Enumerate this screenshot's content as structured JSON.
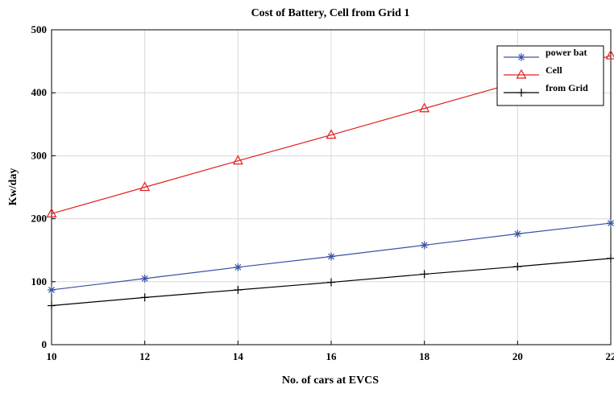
{
  "chart_data": {
    "type": "line",
    "title": "Cost of Battery, Cell from Grid 1",
    "xlabel": "No. of cars at EVCS",
    "ylabel": "Kw/day",
    "x": [
      10,
      12,
      14,
      16,
      18,
      20,
      22
    ],
    "xlim": [
      10,
      22
    ],
    "ylim": [
      0,
      500
    ],
    "xticks": [
      "10",
      "12",
      "14",
      "16",
      "18",
      "20",
      "22"
    ],
    "yticks": [
      "0",
      "100",
      "200",
      "300",
      "400",
      "500"
    ],
    "grid": true,
    "legend_position": "top-right",
    "series": [
      {
        "name": "power bat",
        "color": "#3a50a6",
        "marker": "asterisk",
        "values": [
          87,
          105,
          123,
          140,
          158,
          176,
          193
        ]
      },
      {
        "name": "Cell",
        "color": "#e02020",
        "marker": "triangle",
        "values": [
          208,
          250,
          292,
          333,
          375,
          417,
          459
        ]
      },
      {
        "name": "from Grid",
        "color": "#000000",
        "marker": "plus",
        "values": [
          62,
          75,
          87,
          99,
          112,
          124,
          137
        ]
      }
    ]
  }
}
